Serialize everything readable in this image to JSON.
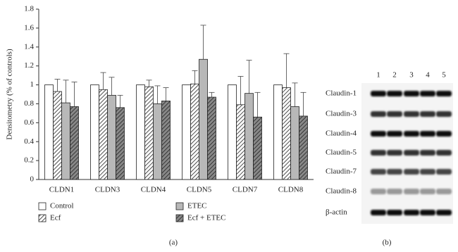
{
  "chart_data": {
    "type": "bar",
    "y_label": "Densitometry (% of controls)",
    "categories": [
      "CLDN1",
      "CLDN3",
      "CLDN4",
      "CLDN5",
      "CLDN7",
      "CLDN8"
    ],
    "series": [
      {
        "name": "Control",
        "color": "#ffffff",
        "hatch": false,
        "values": [
          1.0,
          1.0,
          1.0,
          1.0,
          1.0,
          1.0
        ]
      },
      {
        "name": "Ecf",
        "color": "#ffffff",
        "hatch": true,
        "values": [
          0.93,
          0.95,
          0.98,
          1.01,
          0.79,
          0.97
        ],
        "errors": [
          0.13,
          0.18,
          0.07,
          0.14,
          0.3,
          0.36
        ]
      },
      {
        "name": "ETEC",
        "color": "#b8b8b8",
        "hatch": false,
        "values": [
          0.81,
          0.89,
          0.8,
          1.27,
          0.91,
          0.77
        ],
        "errors": [
          0.24,
          0.19,
          0.19,
          0.36,
          0.35,
          0.25
        ]
      },
      {
        "name": "Ecf + ETEC",
        "color": "#888888",
        "hatch": true,
        "values": [
          0.77,
          0.76,
          0.83,
          0.87,
          0.66,
          0.67
        ],
        "errors": [
          0.26,
          0.13,
          0.14,
          0.05,
          0.26,
          0.25
        ]
      }
    ],
    "ylim": [
      0,
      1.8
    ],
    "yticks": [
      0,
      0.2,
      0.4,
      0.6,
      0.8,
      1,
      1.2,
      1.4,
      1.6,
      1.8
    ],
    "panel_label": "(a)"
  },
  "blot": {
    "lanes": [
      "1",
      "2",
      "3",
      "4",
      "5"
    ],
    "rows": [
      "Claudin-1",
      "Claudin-3",
      "Claudin-4",
      "Claudin-5",
      "Claudin-7",
      "Claudin-8",
      "β-actin"
    ],
    "panel_label": "(b)"
  }
}
